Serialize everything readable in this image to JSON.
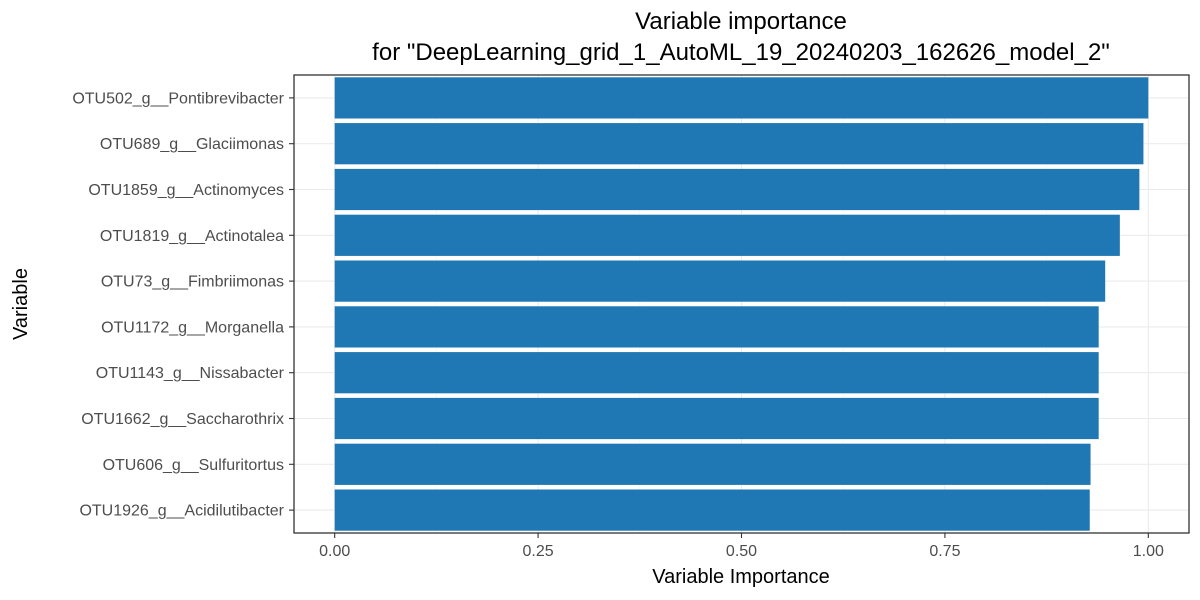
{
  "chart_data": {
    "type": "bar",
    "orientation": "horizontal",
    "title": "Variable importance",
    "subtitle": "for \"DeepLearning_grid_1_AutoML_19_20240203_162626_model_2\"",
    "xlabel": "Variable Importance",
    "ylabel": "Variable",
    "categories": [
      "OTU502_g__Pontibrevibacter",
      "OTU689_g__Glaciimonas",
      "OTU1859_g__Actinomyces",
      "OTU1819_g__Actinotalea",
      "OTU73_g__Fimbriimonas",
      "OTU1172_g__Morganella",
      "OTU1143_g__Nissabacter",
      "OTU1662_g__Saccharothrix",
      "OTU606_g__Sulfuritortus",
      "OTU1926_g__Acidilutibacter"
    ],
    "values": [
      1.0,
      0.994,
      0.989,
      0.965,
      0.947,
      0.939,
      0.939,
      0.939,
      0.929,
      0.928
    ],
    "xlim": [
      -0.05,
      1.05
    ],
    "xticks": [
      0,
      0.25,
      0.5,
      0.75,
      1
    ],
    "xtick_labels": [
      "0.00",
      "0.25",
      "0.50",
      "0.75",
      "1.00"
    ],
    "bar_color": "#1f77b4",
    "grid": true,
    "legend": "none"
  }
}
